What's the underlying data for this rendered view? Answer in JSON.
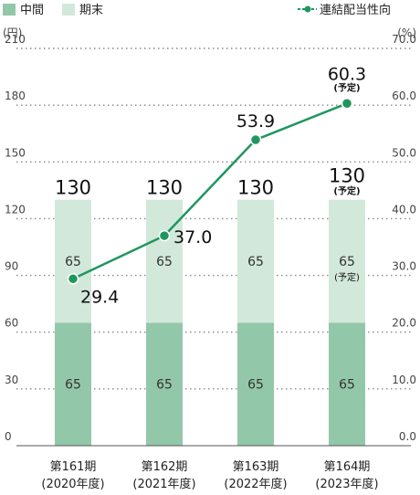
{
  "legend": {
    "interim": "中間",
    "final": "期末",
    "payout": "連結配当性向"
  },
  "colors": {
    "interim": "#93c7a9",
    "final": "#d2e8da",
    "line": "#1f9660",
    "grid": "#8a8a8a"
  },
  "chart_data": {
    "type": "bar",
    "stacked": true,
    "categories": [
      {
        "line1": "第161期",
        "line2": "(2020年度)"
      },
      {
        "line1": "第162期",
        "line2": "(2021年度)"
      },
      {
        "line1": "第163期",
        "line2": "(2022年度)"
      },
      {
        "line1": "第164期",
        "line2": "(2023年度)"
      }
    ],
    "y_left": {
      "unit": "(円)",
      "min": 0,
      "max": 210,
      "ticks": [
        "0",
        "30",
        "60",
        "90",
        "120",
        "150",
        "180",
        "210"
      ]
    },
    "y_right": {
      "unit": "(%)",
      "min": 0,
      "max": 70,
      "ticks": [
        "0.0",
        "10.0",
        "20.0",
        "30.0",
        "40.0",
        "50.0",
        "60.0",
        "70.0"
      ]
    },
    "series": [
      {
        "name": "中間",
        "values": [
          65,
          65,
          65,
          65
        ],
        "labels": [
          "65",
          "65",
          "65",
          "65"
        ]
      },
      {
        "name": "期末",
        "values": [
          65,
          65,
          65,
          65
        ],
        "labels": [
          "65",
          "65",
          "65",
          "65"
        ],
        "notes": [
          "",
          "",
          "",
          "(予定)"
        ]
      }
    ],
    "totals": {
      "labels": [
        "130",
        "130",
        "130",
        "130"
      ],
      "notes": [
        "",
        "",
        "",
        "(予定)"
      ]
    },
    "line_series": {
      "name": "連結配当性向",
      "axis": "right",
      "values": [
        29.4,
        37.0,
        53.9,
        60.3
      ],
      "labels": [
        "29.4",
        "37.0",
        "53.9",
        "60.3"
      ],
      "notes": [
        "",
        "",
        "",
        "(予定)"
      ]
    },
    "grid": true,
    "legend_position": "top"
  }
}
